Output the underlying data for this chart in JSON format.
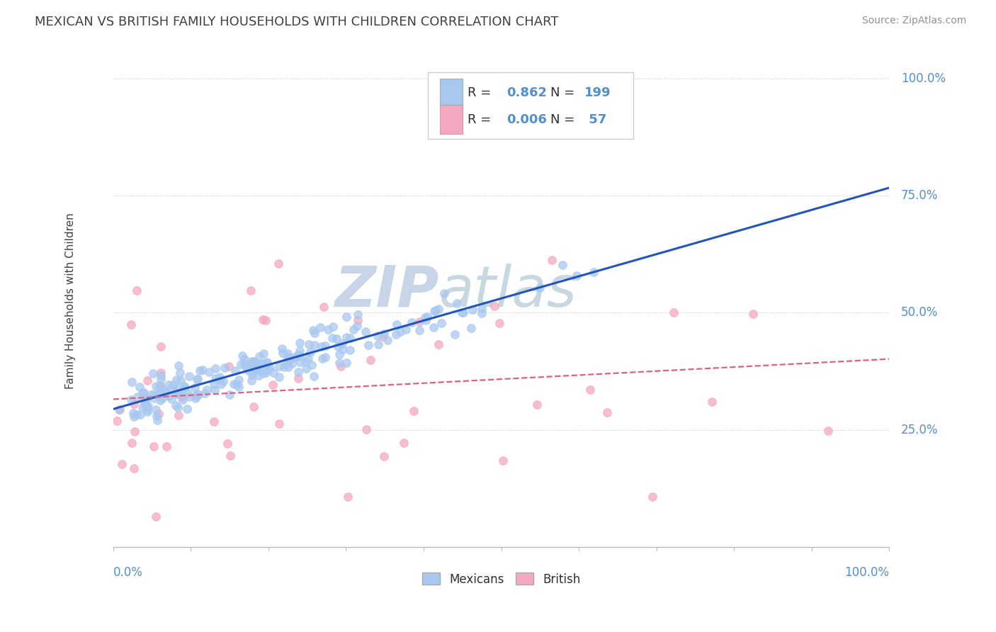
{
  "title": "MEXICAN VS BRITISH FAMILY HOUSEHOLDS WITH CHILDREN CORRELATION CHART",
  "source": "Source: ZipAtlas.com",
  "ylabel": "Family Households with Children",
  "ytick_labels": [
    "25.0%",
    "50.0%",
    "75.0%",
    "100.0%"
  ],
  "ytick_values": [
    0.25,
    0.5,
    0.75,
    1.0
  ],
  "mexican_R": 0.862,
  "mexican_N": 199,
  "british_R": 0.006,
  "british_N": 57,
  "blue_color": "#A8C8F0",
  "pink_color": "#F5A8C0",
  "blue_line_color": "#2255BB",
  "pink_line_color": "#E06080",
  "watermark_zip_color": "#C8D4E8",
  "watermark_atlas_color": "#C8D8E0",
  "background_color": "#FFFFFF",
  "grid_color": "#C8C8D8",
  "title_color": "#404040",
  "source_color": "#909090",
  "axis_label_color": "#5090D0",
  "seed_mexican": 12,
  "seed_british": 77
}
